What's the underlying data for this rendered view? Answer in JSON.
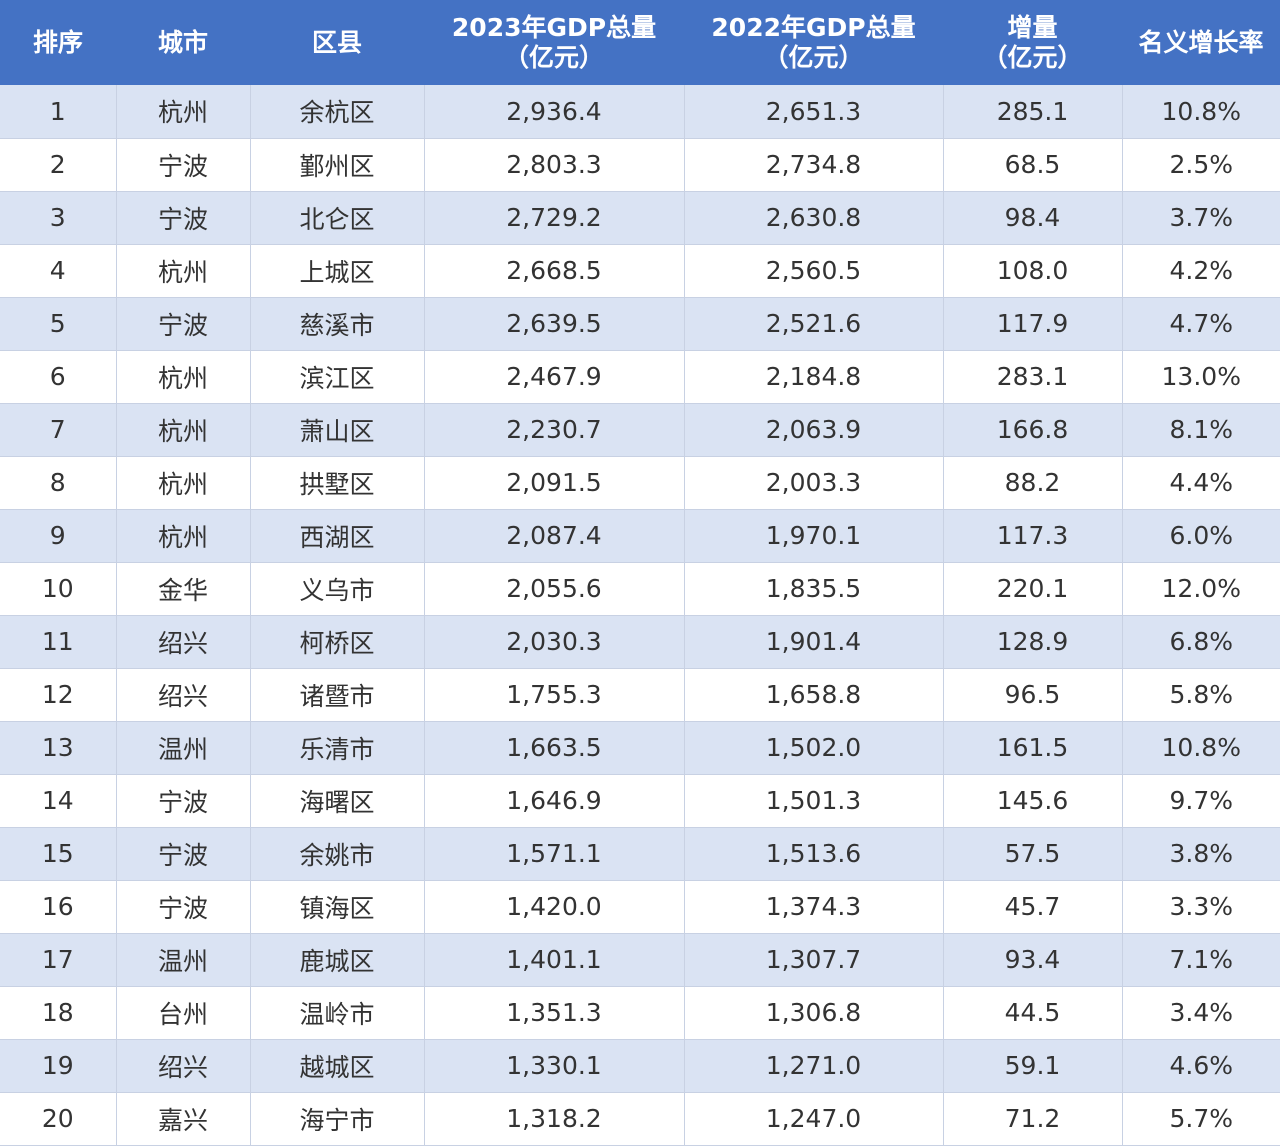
{
  "header": {
    "rank": "排序",
    "city": "城市",
    "district": "区县",
    "gdp2023_line1": "2023年GDP总量",
    "gdp2023_line2": "（亿元）",
    "gdp2022_line1": "2022年GDP总量",
    "gdp2022_line2": "（亿元）",
    "increase_line1": "增量",
    "increase_line2": "（亿元）",
    "growth": "名义增长率"
  },
  "colors": {
    "header_bg": "#4472c4",
    "stripe_bg": "#dae3f3"
  },
  "rows": [
    [
      "1",
      "杭州",
      "余杭区",
      "2,936.4",
      "2,651.3",
      "285.1",
      "10.8%"
    ],
    [
      "2",
      "宁波",
      "鄞州区",
      "2,803.3",
      "2,734.8",
      "68.5",
      "2.5%"
    ],
    [
      "3",
      "宁波",
      "北仑区",
      "2,729.2",
      "2,630.8",
      "98.4",
      "3.7%"
    ],
    [
      "4",
      "杭州",
      "上城区",
      "2,668.5",
      "2,560.5",
      "108.0",
      "4.2%"
    ],
    [
      "5",
      "宁波",
      "慈溪市",
      "2,639.5",
      "2,521.6",
      "117.9",
      "4.7%"
    ],
    [
      "6",
      "杭州",
      "滨江区",
      "2,467.9",
      "2,184.8",
      "283.1",
      "13.0%"
    ],
    [
      "7",
      "杭州",
      "萧山区",
      "2,230.7",
      "2,063.9",
      "166.8",
      "8.1%"
    ],
    [
      "8",
      "杭州",
      "拱墅区",
      "2,091.5",
      "2,003.3",
      "88.2",
      "4.4%"
    ],
    [
      "9",
      "杭州",
      "西湖区",
      "2,087.4",
      "1,970.1",
      "117.3",
      "6.0%"
    ],
    [
      "10",
      "金华",
      "义乌市",
      "2,055.6",
      "1,835.5",
      "220.1",
      "12.0%"
    ],
    [
      "11",
      "绍兴",
      "柯桥区",
      "2,030.3",
      "1,901.4",
      "128.9",
      "6.8%"
    ],
    [
      "12",
      "绍兴",
      "诸暨市",
      "1,755.3",
      "1,658.8",
      "96.5",
      "5.8%"
    ],
    [
      "13",
      "温州",
      "乐清市",
      "1,663.5",
      "1,502.0",
      "161.5",
      "10.8%"
    ],
    [
      "14",
      "宁波",
      "海曙区",
      "1,646.9",
      "1,501.3",
      "145.6",
      "9.7%"
    ],
    [
      "15",
      "宁波",
      "余姚市",
      "1,571.1",
      "1,513.6",
      "57.5",
      "3.8%"
    ],
    [
      "16",
      "宁波",
      "镇海区",
      "1,420.0",
      "1,374.3",
      "45.7",
      "3.3%"
    ],
    [
      "17",
      "温州",
      "鹿城区",
      "1,401.1",
      "1,307.7",
      "93.4",
      "7.1%"
    ],
    [
      "18",
      "台州",
      "温岭市",
      "1,351.3",
      "1,306.8",
      "44.5",
      "3.4%"
    ],
    [
      "19",
      "绍兴",
      "越城区",
      "1,330.1",
      "1,271.0",
      "59.1",
      "4.6%"
    ],
    [
      "20",
      "嘉兴",
      "海宁市",
      "1,318.2",
      "1,247.0",
      "71.2",
      "5.7%"
    ]
  ]
}
